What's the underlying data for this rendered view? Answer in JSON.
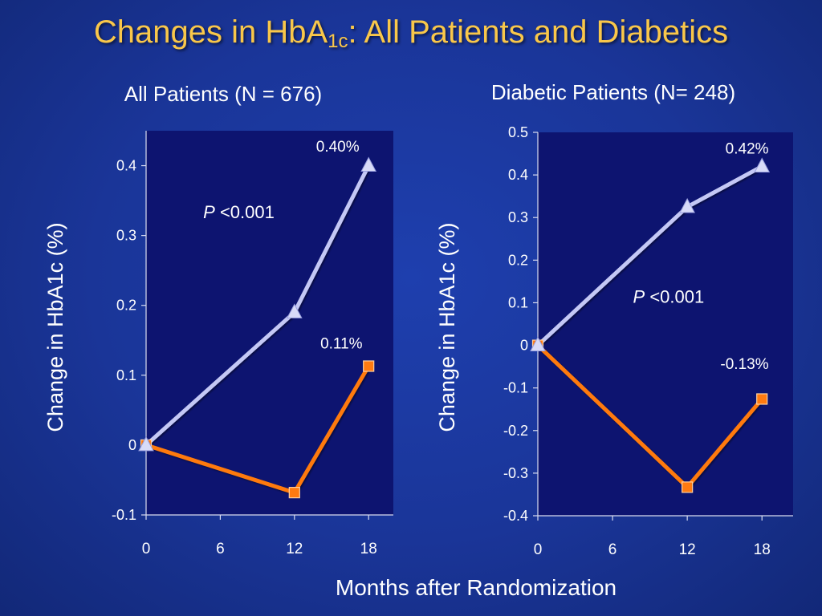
{
  "slide": {
    "title_main": "Changes in HbA",
    "title_sub": "1c",
    "title_rest": ": All Patients and Diabetics",
    "x_common_label": "Months after Randomization"
  },
  "colors": {
    "background": "#1a3598",
    "plot_area": "#0d1470",
    "title": "#f9c74a",
    "series_lavender": "#c4c8f5",
    "series_orange": "#ff7a10",
    "text": "#ffffff"
  },
  "chart_data": [
    {
      "type": "line",
      "title": "All Patients (N = 676)",
      "ylabel": "Change in HbA1c (%)",
      "xlabel": "",
      "x": [
        0,
        6,
        12,
        18
      ],
      "xlim": [
        0,
        20
      ],
      "ylim": [
        -0.1,
        0.45
      ],
      "yticks": [
        -0.1,
        0,
        0.1,
        0.2,
        0.3,
        0.4
      ],
      "ytick_labels": [
        "-0.1",
        "0",
        "0.1",
        "0.2",
        "0.3",
        "0.4"
      ],
      "xticks": [
        0,
        6,
        12,
        18
      ],
      "xtick_labels": [
        "0",
        "6",
        "12",
        "18"
      ],
      "series": [
        {
          "marker": "triangle",
          "color": "#c4c8f5",
          "points": [
            [
              0,
              0
            ],
            [
              12,
              0.19
            ],
            [
              18,
              0.4
            ]
          ]
        },
        {
          "marker": "square",
          "color": "#ff7a10",
          "points": [
            [
              0,
              0
            ],
            [
              12,
              -0.068
            ],
            [
              18,
              0.113
            ]
          ]
        }
      ],
      "annotations": [
        {
          "text": "0.40%",
          "x": 15.5,
          "y": 0.42
        },
        {
          "text": "0.11%",
          "x": 15.8,
          "y": 0.138
        }
      ],
      "p_value": {
        "italic": "P",
        "text": " <0.001",
        "x": 7.5,
        "y": 0.325
      },
      "grid": false
    },
    {
      "type": "line",
      "title": "Diabetic Patients (N= 248)",
      "ylabel": "Change in HbA1c (%)",
      "xlabel": "",
      "x": [
        0,
        6,
        12,
        18
      ],
      "xlim": [
        0,
        20.5
      ],
      "ylim": [
        -0.4,
        0.5
      ],
      "yticks": [
        -0.4,
        -0.3,
        -0.2,
        -0.1,
        0,
        0.1,
        0.2,
        0.3,
        0.4,
        0.5
      ],
      "ytick_labels": [
        "-0.4",
        "-0.3",
        "-0.2",
        "-0.1",
        "0",
        "0.1",
        "0.2",
        "0.3",
        "0.4",
        "0.5"
      ],
      "xticks": [
        0,
        6,
        12,
        18
      ],
      "xtick_labels": [
        "0",
        "6",
        "12",
        "18"
      ],
      "series": [
        {
          "marker": "triangle",
          "color": "#c4c8f5",
          "points": [
            [
              0,
              0
            ],
            [
              12,
              0.325
            ],
            [
              18,
              0.42
            ]
          ]
        },
        {
          "marker": "square",
          "color": "#ff7a10",
          "points": [
            [
              0,
              0
            ],
            [
              12,
              -0.333
            ],
            [
              18,
              -0.126
            ]
          ]
        }
      ],
      "annotations": [
        {
          "text": "0.42%",
          "x": 16.8,
          "y": 0.45
        },
        {
          "text": "-0.13%",
          "x": 16.6,
          "y": -0.055
        }
      ],
      "p_value": {
        "italic": "P",
        "text": " <0.001",
        "x": 10.5,
        "y": 0.1
      },
      "grid": false
    }
  ]
}
